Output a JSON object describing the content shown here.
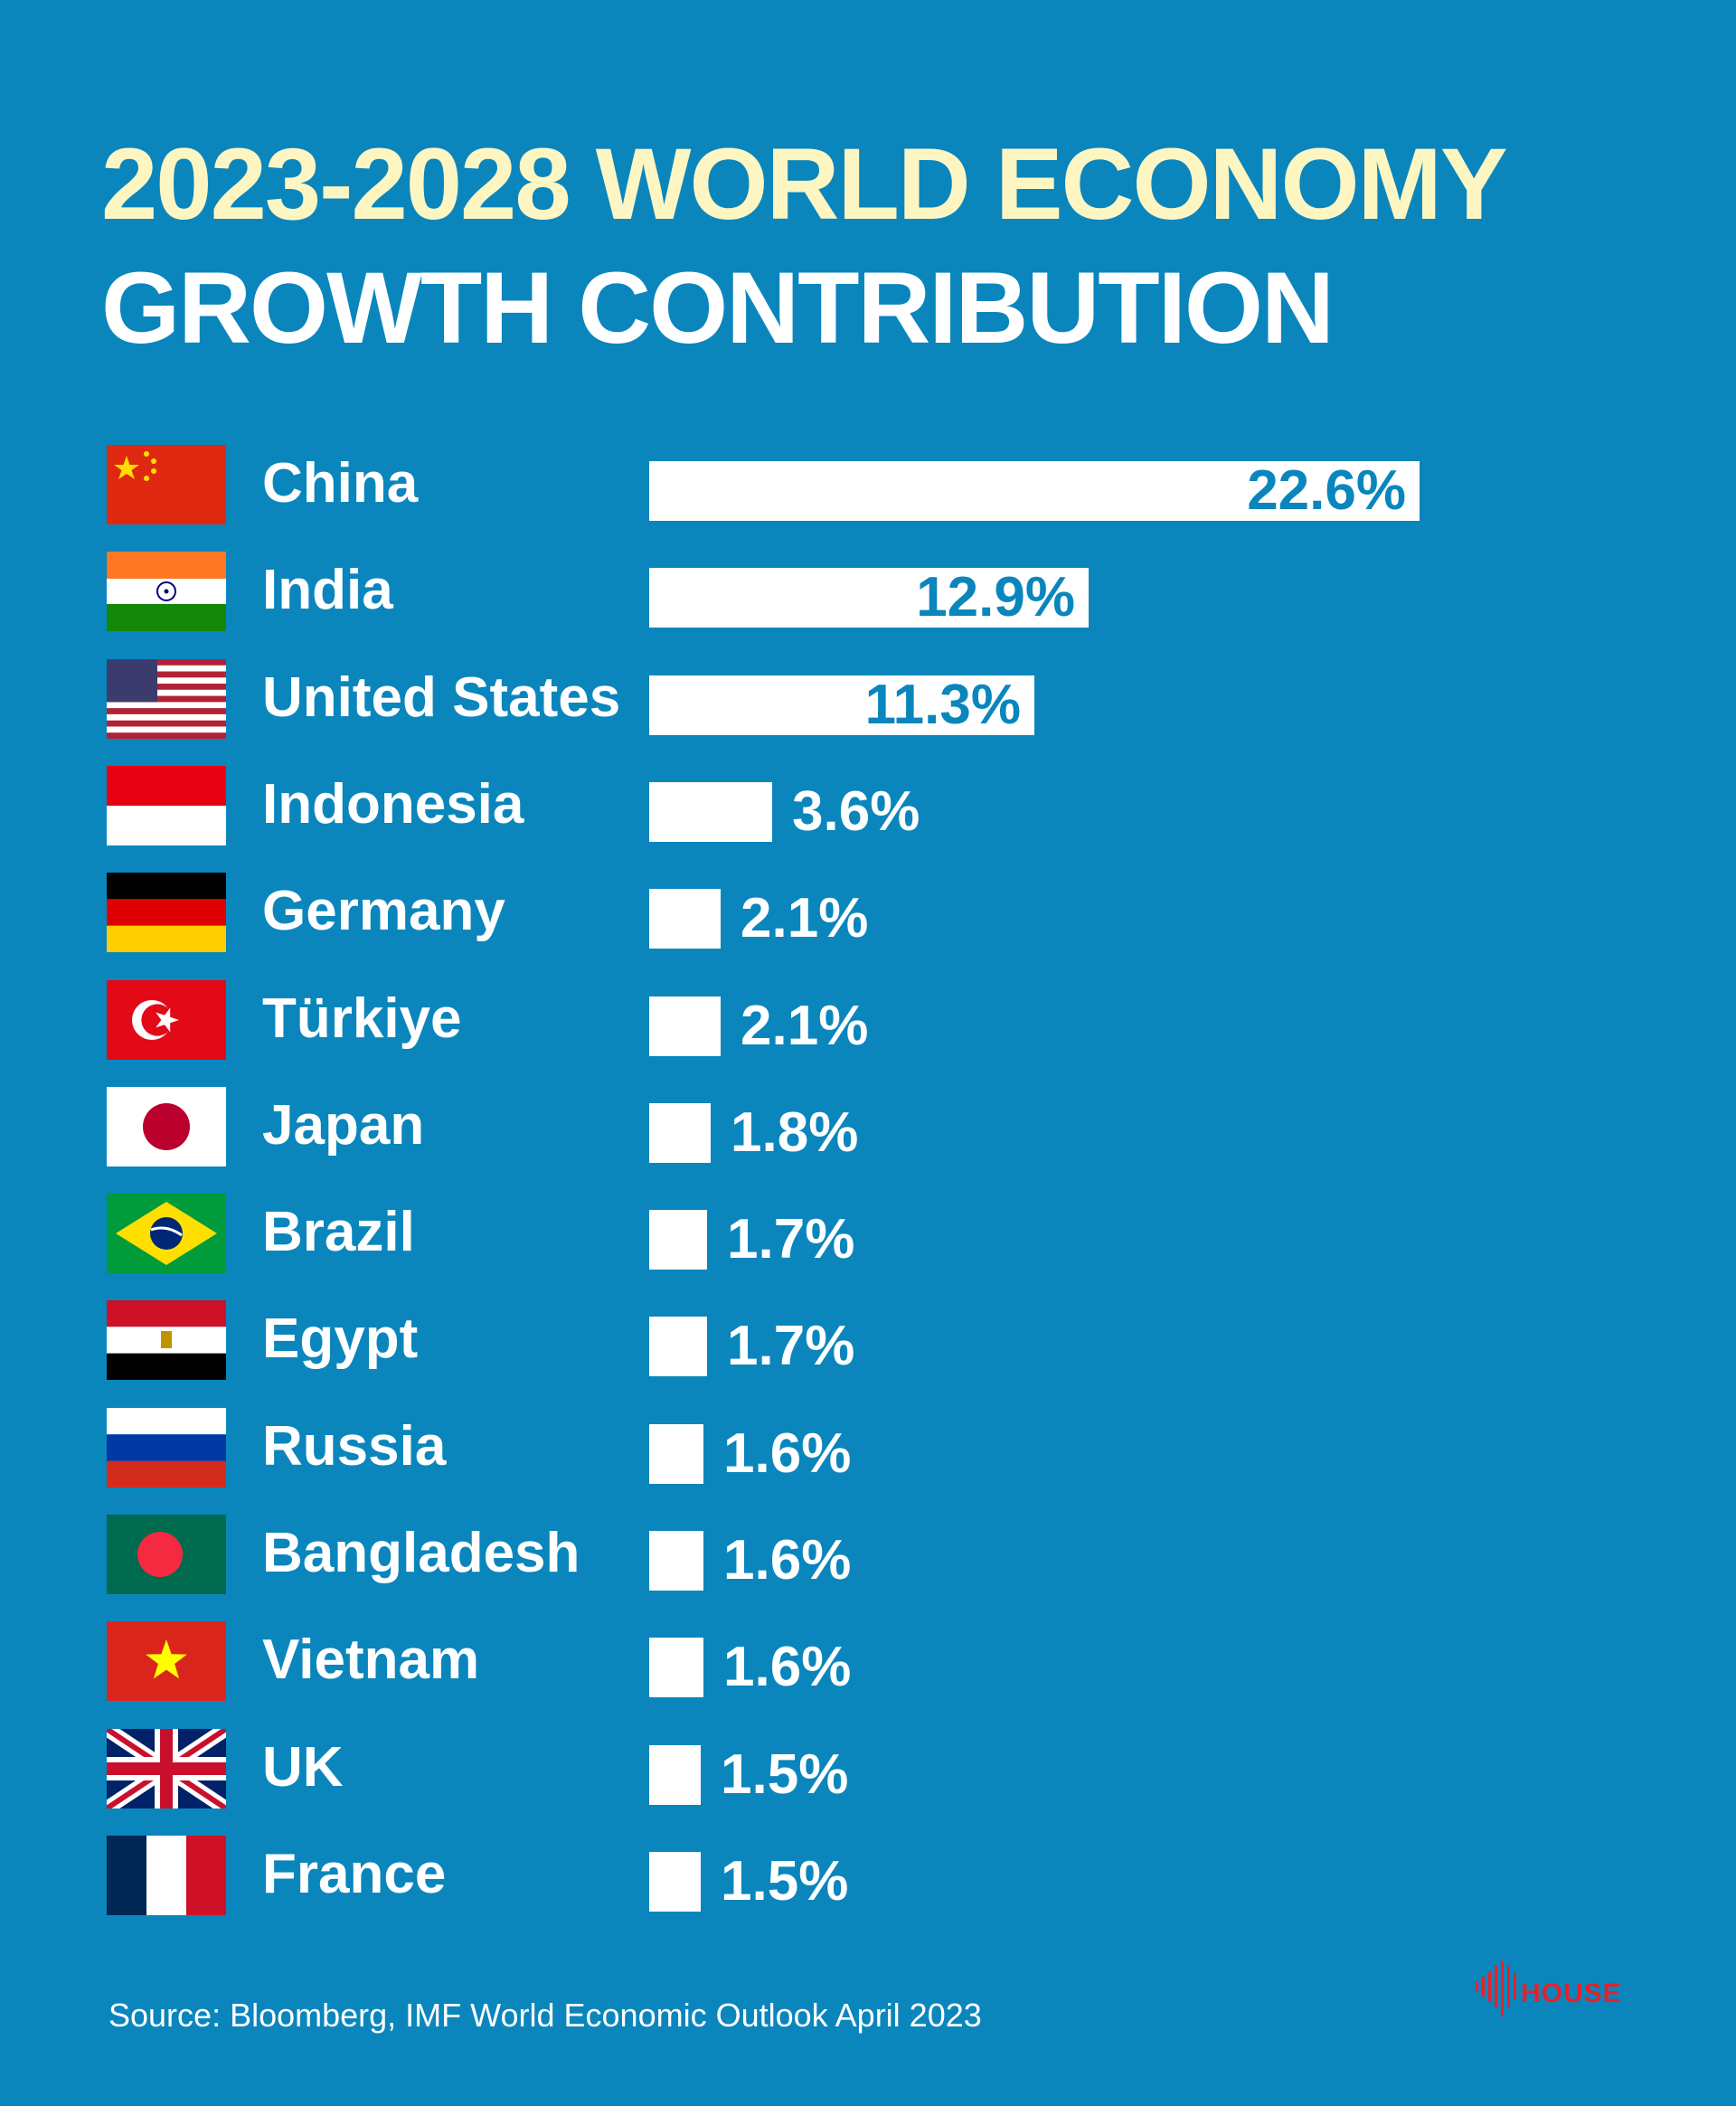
{
  "title": {
    "line1": "2023-2028 WORLD ECONOMY",
    "line2": "GROWTH CONTRIBUTION"
  },
  "chart_data": {
    "type": "bar",
    "orientation": "horizontal",
    "title": "2023-2028 WORLD ECONOMY GROWTH CONTRIBUTION",
    "categories": [
      "China",
      "India",
      "United States",
      "Indonesia",
      "Germany",
      "Türkiye",
      "Japan",
      "Brazil",
      "Egypt",
      "Russia",
      "Bangladesh",
      "Vietnam",
      "UK",
      "France"
    ],
    "values": [
      22.6,
      12.9,
      11.3,
      3.6,
      2.1,
      2.1,
      1.8,
      1.7,
      1.7,
      1.6,
      1.6,
      1.6,
      1.5,
      1.5
    ],
    "labels": [
      "22.6%",
      "12.9%",
      "11.3%",
      "3.6%",
      "2.1%",
      "2.1%",
      "1.8%",
      "1.7%",
      "1.7%",
      "1.6%",
      "1.6%",
      "1.6%",
      "1.5%",
      "1.5%"
    ],
    "unit": "%",
    "xlim": [
      0,
      22.6
    ]
  },
  "rows": [
    {
      "country": "China",
      "flag": "china-flag-icon",
      "value_label": "22.6%"
    },
    {
      "country": "India",
      "flag": "india-flag-icon",
      "value_label": "12.9%"
    },
    {
      "country": "United States",
      "flag": "usa-flag-icon",
      "value_label": "11.3%"
    },
    {
      "country": "Indonesia",
      "flag": "indonesia-flag-icon",
      "value_label": "3.6%"
    },
    {
      "country": "Germany",
      "flag": "germany-flag-icon",
      "value_label": "2.1%"
    },
    {
      "country": "Türkiye",
      "flag": "turkiye-flag-icon",
      "value_label": "2.1%"
    },
    {
      "country": "Japan",
      "flag": "japan-flag-icon",
      "value_label": "1.8%"
    },
    {
      "country": "Brazil",
      "flag": "brazil-flag-icon",
      "value_label": "1.7%"
    },
    {
      "country": "Egypt",
      "flag": "egypt-flag-icon",
      "value_label": "1.7%"
    },
    {
      "country": "Russia",
      "flag": "russia-flag-icon",
      "value_label": "1.6%"
    },
    {
      "country": "Bangladesh",
      "flag": "bangladesh-flag-icon",
      "value_label": "1.6%"
    },
    {
      "country": "Vietnam",
      "flag": "vietnam-flag-icon",
      "value_label": "1.6%"
    },
    {
      "country": "UK",
      "flag": "uk-flag-icon",
      "value_label": "1.5%"
    },
    {
      "country": "France",
      "flag": "france-flag-icon",
      "value_label": "1.5%"
    }
  ],
  "source": "Source: Bloomberg, IMF World Economic Outlook April 2023",
  "logo": {
    "text": "HOUSE",
    "icon": "sound-wave-logo-icon"
  },
  "colors": {
    "background": "#0a86bd",
    "title_accent": "#fdf6c3",
    "bar": "#ffffff",
    "logo": "#e8202a"
  }
}
